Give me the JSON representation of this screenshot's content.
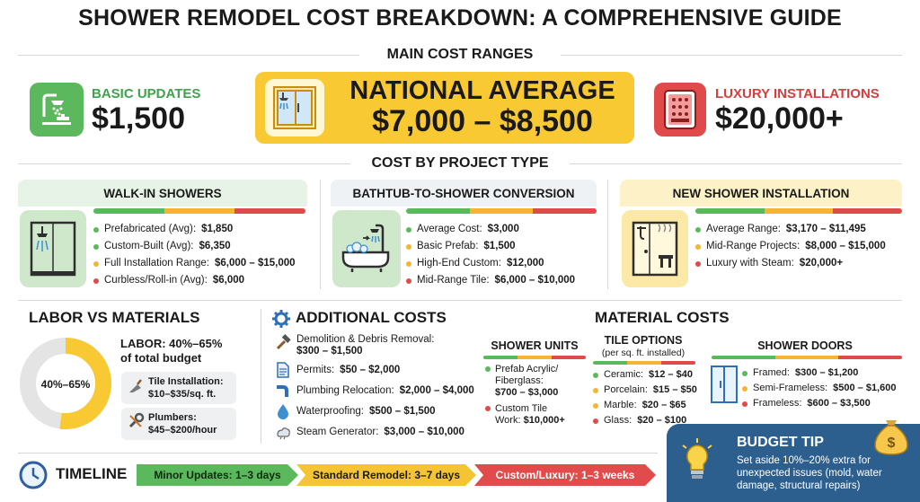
{
  "title": "SHOWER REMODEL COST BREAKDOWN: A COMPREHENSIVE GUIDE",
  "main_cost_ranges": {
    "heading": "MAIN COST RANGES",
    "basic": {
      "label": "BASIC UPDATES",
      "value": "$1,500",
      "icon": "shower-faucet-icon",
      "color": "#5cb85c"
    },
    "national": {
      "label": "NATIONAL AVERAGE",
      "value": "$7,000 – $8,500",
      "icon": "shower-stall-icon",
      "color": "#f9c934"
    },
    "luxury": {
      "label": "LUXURY INSTALLATIONS",
      "value": "$20,000+",
      "icon": "steam-panel-icon",
      "color": "#e04a4a"
    }
  },
  "project_type": {
    "heading": "COST BY PROJECT TYPE",
    "walk_in": {
      "title": "WALK-IN SHOWERS",
      "icon": "walk-in-shower-icon",
      "items": [
        {
          "label": "Prefabricated (Avg):",
          "value": "$1,850",
          "color": "#5cb85c"
        },
        {
          "label": "Custom-Built (Avg):",
          "value": "$6,350",
          "color": "#5cb85c"
        },
        {
          "label": "Full Installation Range:",
          "value": "$6,000 – $15,000",
          "color": "#f2b632"
        },
        {
          "label": "Curbless/Roll-in (Avg):",
          "value": "$6,000",
          "color": "#e04a4a"
        }
      ]
    },
    "conversion": {
      "title": "BATHTUB-TO-SHOWER CONVERSION",
      "icon": "bathtub-to-shower-icon",
      "items": [
        {
          "label": "Average Cost:",
          "value": "$3,000",
          "color": "#5cb85c"
        },
        {
          "label": "Basic Prefab:",
          "value": "$1,500",
          "color": "#f2b632"
        },
        {
          "label": "High-End Custom:",
          "value": "$12,000",
          "color": "#f2b632"
        },
        {
          "label": "Mid-Range Tile:",
          "value": "$6,000 – $10,000",
          "color": "#e04a4a"
        }
      ]
    },
    "new_install": {
      "title": "NEW SHOWER INSTALLATION",
      "icon": "new-shower-icon",
      "items": [
        {
          "label": "Average Range:",
          "value": "$3,170 – $11,495",
          "color": "#5cb85c"
        },
        {
          "label": "Mid-Range Projects:",
          "value": "$8,000 – $15,000",
          "color": "#f2b632"
        },
        {
          "label": "Luxury with Steam:",
          "value": "$20,000+",
          "color": "#e04a4a"
        }
      ]
    }
  },
  "labor": {
    "heading": "LABOR VS MATERIALS",
    "donut_label": "40%–65%",
    "share": 0.52,
    "line1": "LABOR: 40%–65%",
    "line2": "of total budget",
    "tile": {
      "line1": "Tile Installation:",
      "line2": "$10–$35/sq. ft.",
      "icon": "trowel-icon"
    },
    "plumbers": {
      "line1": "Plumbers:",
      "line2": "$45–$200/hour",
      "icon": "wrench-icon"
    }
  },
  "additional": {
    "heading": "ADDITIONAL COSTS",
    "icon": "gear-icon",
    "items": [
      {
        "line1": "Demolition & Debris Removal:",
        "line2": "$300 – $1,500",
        "icon": "hammer-icon"
      },
      {
        "line1": "Permits:",
        "value": "$50 – $2,000",
        "icon": "document-icon"
      },
      {
        "line1": "Plumbing Relocation:",
        "value": "$2,000 – $4,000",
        "icon": "pipe-icon"
      },
      {
        "line1": "Waterproofing:",
        "value": "$500 – $1,500",
        "icon": "water-drop-icon"
      },
      {
        "line1": "Steam Generator:",
        "value": "$3,000 – $10,000",
        "icon": "steam-icon"
      }
    ]
  },
  "materials": {
    "heading": "MATERIAL COSTS",
    "units": {
      "title": "SHOWER UNITS",
      "items": [
        {
          "line1": "Prefab Acrylic/",
          "line2": "Fiberglass:",
          "line3": "$700 – $3,000",
          "color": "#5cb85c"
        },
        {
          "line1": "Custom Tile",
          "line2": "Work:",
          "line2b": "$10,000+",
          "color": "#e04a4a"
        }
      ]
    },
    "tile": {
      "title": "TILE OPTIONS",
      "subtitle": "(per sq. ft. installed)",
      "items": [
        {
          "label": "Ceramic:",
          "value": "$12 – $40",
          "color": "#5cb85c"
        },
        {
          "label": "Porcelain:",
          "value": "$15 – $50",
          "color": "#f2b632"
        },
        {
          "label": "Marble:",
          "value": "$20 – $65",
          "color": "#f2b632"
        },
        {
          "label": "Glass:",
          "value": "$20 – $100",
          "color": "#e04a4a"
        }
      ]
    },
    "doors": {
      "title": "SHOWER DOORS",
      "icon": "shower-door-icon",
      "items": [
        {
          "label": "Framed:",
          "value": "$300 – $1,200",
          "color": "#5cb85c"
        },
        {
          "label": "Semi-Frameless:",
          "value": "$500 – $1,600",
          "color": "#f2b632"
        },
        {
          "label": "Frameless:",
          "value": "$600 – $3,500",
          "color": "#e04a4a"
        }
      ]
    }
  },
  "timeline": {
    "label": "TIMELINE",
    "icon": "clock-icon",
    "steps": [
      {
        "label": "Minor Updates: 1–3 days",
        "color": "#5cb85c"
      },
      {
        "label": "Standard Remodel: 3–7 days",
        "color": "#f5c435"
      },
      {
        "label": "Custom/Luxury: 1–3 weeks",
        "color": "#e24b4b"
      }
    ]
  },
  "budget_tip": {
    "title": "BUDGET TIP",
    "text1": "Set aside 10%–20% extra for",
    "text2": "unexpected issues (mold, water",
    "text3": "damage, structural repairs)",
    "icon": "lightbulb-icon",
    "icon2": "money-bag-icon"
  }
}
